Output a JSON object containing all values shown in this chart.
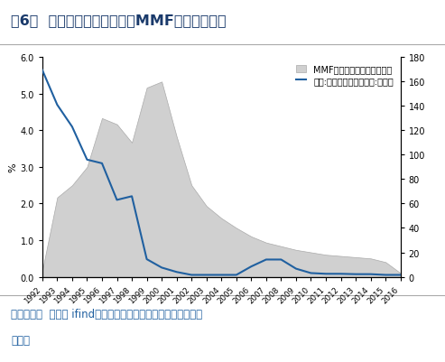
{
  "title_prefix": "图6：  ",
  "title_main": "隔夜拆借利率过低致使MMF基金走向消亡",
  "source_line1": "数据来源：  同花顺 ifind，日本投资信托协会，广发证券发展研",
  "source_line2": "究中心",
  "ylabel_left": "%",
  "legend_area": "MMF基金（千亿日元，左轴）",
  "legend_line": "日本:无担保隔夜拆借利率:月均值",
  "years": [
    1992,
    1993,
    1994,
    1995,
    1996,
    1997,
    1998,
    1999,
    2000,
    2001,
    2002,
    2003,
    2004,
    2005,
    2006,
    2007,
    2008,
    2009,
    2010,
    2011,
    2012,
    2013,
    2014,
    2015,
    2016
  ],
  "mmf_values": [
    5,
    65,
    75,
    90,
    130,
    125,
    110,
    155,
    160,
    115,
    75,
    58,
    48,
    40,
    33,
    28,
    25,
    22,
    20,
    18,
    17,
    16,
    15,
    12,
    3
  ],
  "rate_values": [
    5.65,
    4.7,
    4.1,
    3.2,
    3.1,
    2.1,
    2.2,
    0.48,
    0.25,
    0.13,
    0.05,
    0.05,
    0.05,
    0.05,
    0.28,
    0.47,
    0.47,
    0.22,
    0.1,
    0.08,
    0.08,
    0.07,
    0.07,
    0.05,
    0.05
  ],
  "ylim_left": [
    0,
    6.0
  ],
  "ylim_right": [
    0,
    180
  ],
  "yticks_left": [
    0.0,
    1.0,
    2.0,
    3.0,
    4.0,
    5.0,
    6.0
  ],
  "yticks_right": [
    0,
    20,
    40,
    60,
    80,
    100,
    120,
    140,
    160,
    180
  ],
  "area_color": "#d0d0d0",
  "area_edge_color": "#aaaaaa",
  "line_color": "#2060a0",
  "background_color": "#ffffff",
  "title_color": "#1a3a6b",
  "source_color": "#2060a0",
  "divider_color": "#aaaaaa"
}
